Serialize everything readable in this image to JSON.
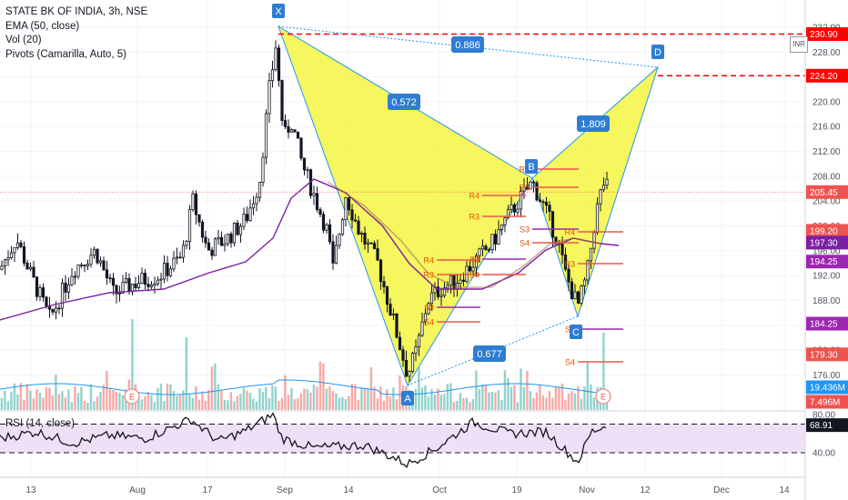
{
  "legend": {
    "symbol": "STATE BK OF INDIA, 3h, NSE",
    "ema": "EMA (50, close)",
    "vol": "Vol (20)",
    "pivots": "Pivots (Camarilla, Auto, 5)"
  },
  "currency_label": "INR",
  "rsi_label": "RSI (14, close)",
  "colors": {
    "up": "#26a69a",
    "down": "#ef5350",
    "candle": "#131722",
    "ema": "#7b1fa2",
    "pattern_fill": "#f5f542",
    "pattern_stroke": "#2196f3",
    "level_red": "#ff0000",
    "pivot_purple": "#9c27b0",
    "rsi_band": "#e9d5f5"
  },
  "chart_data": [
    {
      "type": "candlestick",
      "ylim": [
        174,
        231.5
      ],
      "price_axis_ticks": [
        "176.00",
        "180.00",
        "184.00",
        "188.00",
        "192.00",
        "196.00",
        "200.00",
        "204.00",
        "208.00",
        "212.00",
        "216.00",
        "220.00",
        "224.00",
        "228.00",
        "232.00"
      ],
      "x_tick_labels": [
        "13",
        "Aug",
        "17",
        "Sep",
        "14",
        "Oct",
        "19",
        "Nov",
        "12",
        "Dec",
        "14"
      ],
      "last_price": 205.45,
      "price_tags": [
        "230.90",
        "224.20",
        "205.45",
        "199.20",
        "197.30",
        "194.25",
        "184.25",
        "179.30",
        "19.436M",
        "7.496M"
      ],
      "harmonic_pattern": {
        "points": [
          {
            "label": "X",
            "price": 230.9
          },
          {
            "label": "A",
            "price": 175.5
          },
          {
            "label": "B",
            "price": 207.2
          },
          {
            "label": "C",
            "price": 186.0
          },
          {
            "label": "D",
            "price": 224.2
          }
        ],
        "ratios": [
          "0.886",
          "0.572",
          "1.809",
          "0.677"
        ]
      },
      "pivot_labels": [
        "R4",
        "R3",
        "S3",
        "S4",
        "R4",
        "R3",
        "S3",
        "S4",
        "R4",
        "R3",
        "S3",
        "S4",
        "R4",
        "R3",
        "S3",
        "S4"
      ],
      "earnings_markers": [
        "E",
        "E"
      ]
    },
    {
      "type": "line",
      "title": "RSI (14, close)",
      "ylim": [
        20,
        90
      ],
      "y_tick_labels": [
        "80.00",
        "40.00"
      ],
      "bands": [
        40,
        70
      ],
      "last_value": "68.91"
    }
  ]
}
